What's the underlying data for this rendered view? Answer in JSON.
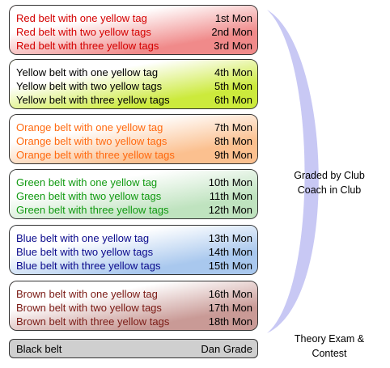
{
  "groups": [
    {
      "color": "#d40000",
      "fill_light": "#ffffff",
      "fill_dark": "#f08a8a",
      "rows": [
        {
          "label": "Red belt with one yellow tag",
          "month": "1st Mon"
        },
        {
          "label": "Red belt with two yellow tags",
          "month": "2nd Mon"
        },
        {
          "label": "Red belt with three yellow tags",
          "month": "3rd Mon"
        }
      ]
    },
    {
      "color": "#000000",
      "fill_light": "#ffffff",
      "fill_dark": "#ccea3c",
      "rows": [
        {
          "label": "Yellow belt with one yellow tag",
          "month": "4th Mon"
        },
        {
          "label": "Yellow belt with two yellow tags",
          "month": "5th Mon"
        },
        {
          "label": "Yellow belt with three yellow tags",
          "month": "6th Mon"
        }
      ]
    },
    {
      "color": "#ff6a10",
      "fill_light": "#ffffff",
      "fill_dark": "#fbc08f",
      "rows": [
        {
          "label": "Orange belt with one yellow tag",
          "month": "7th Mon"
        },
        {
          "label": "Orange belt with two yellow tags",
          "month": "8th Mon"
        },
        {
          "label": "Orange belt with three yellow tags",
          "month": "9th Mon"
        }
      ]
    },
    {
      "color": "#119a11",
      "fill_light": "#ffffff",
      "fill_dark": "#bfe3bf",
      "rows": [
        {
          "label": "Green belt with one yellow tag",
          "month": "10th Mon"
        },
        {
          "label": "Green belt with two yellow tags",
          "month": "11th Mon"
        },
        {
          "label": "Green belt with three yellow tags",
          "month": "12th Mon"
        }
      ]
    },
    {
      "color": "#0a0a8c",
      "fill_light": "#ffffff",
      "fill_dark": "#a9c8ee",
      "rows": [
        {
          "label": "Blue belt with one yellow tag",
          "month": "13th Mon"
        },
        {
          "label": "Blue belt with two yellow tags",
          "month": "14th Mon"
        },
        {
          "label": "Blue belt with three yellow tags",
          "month": "15th Mon"
        }
      ]
    },
    {
      "color": "#7a1a14",
      "fill_light": "#ffffff",
      "fill_dark": "#c99a96",
      "rows": [
        {
          "label": "Brown belt with one yellow tag",
          "month": "16th Mon"
        },
        {
          "label": "Brown belt with two yellow tags",
          "month": "17th Mon"
        },
        {
          "label": "Brown belt with three yellow tags",
          "month": "18th Mon"
        }
      ]
    }
  ],
  "black_belt": {
    "label": "Black belt",
    "grade": "Dan Grade",
    "fill": "#cfcfcf"
  },
  "graded_label": {
    "line1": "Graded by Club",
    "line2": "Coach in Club"
  },
  "theory_label": {
    "line1": "Theory Exam &",
    "line2": "Contest"
  },
  "arc_color": "#c8c8f4"
}
